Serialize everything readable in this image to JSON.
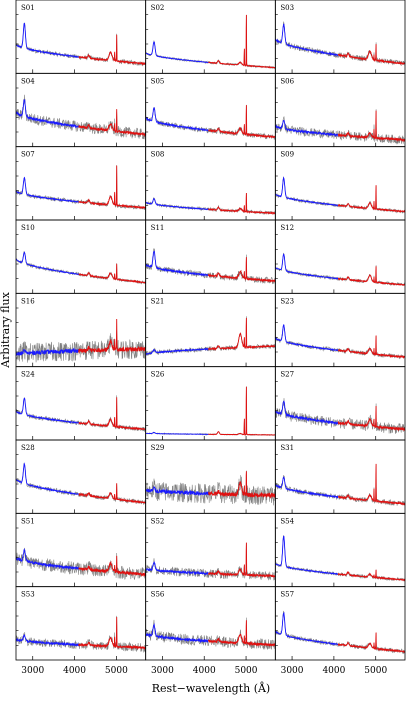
{
  "chart_data": {
    "type": "line",
    "title": "",
    "ylabel": "Arbitrary flux",
    "xlabel": "Rest−wavelength (Å)",
    "xlim": [
      2600,
      5700
    ],
    "xticks": [
      3000,
      4000,
      5000
    ],
    "grid": false,
    "colors": {
      "blue_fit": "#1a1aff",
      "red_fit": "#e01010",
      "observed": "#808080",
      "axes": "#000000"
    },
    "series_note_blue_range": [
      2600,
      4100
    ],
    "series_note_red_range": [
      4100,
      5700
    ],
    "panels": [
      {
        "label": "S01",
        "start": 0.45,
        "end": 0.1,
        "peak": 0.45,
        "oiii": 0.5,
        "hb": 0.15,
        "noise": 0.04
      },
      {
        "label": "S02",
        "start": 0.3,
        "end": 0.03,
        "peak": 0.25,
        "oiii": 0.95,
        "hb": 0.05,
        "noise": 0.02
      },
      {
        "label": "S03",
        "start": 0.55,
        "end": 0.1,
        "peak": 0.35,
        "oiii": 0.3,
        "hb": 0.15,
        "noise": 0.05
      },
      {
        "label": "S04",
        "start": 0.55,
        "end": 0.15,
        "peak": 0.3,
        "oiii": 0.4,
        "hb": 0.12,
        "noise": 0.1
      },
      {
        "label": "S05",
        "start": 0.45,
        "end": 0.1,
        "peak": 0.25,
        "oiii": 0.55,
        "hb": 0.1,
        "noise": 0.05
      },
      {
        "label": "S06",
        "start": 0.3,
        "end": 0.05,
        "peak": 0.15,
        "oiii": 0.5,
        "hb": 0.08,
        "noise": 0.08
      },
      {
        "label": "S07",
        "start": 0.45,
        "end": 0.15,
        "peak": 0.3,
        "oiii": 0.75,
        "hb": 0.15,
        "noise": 0.04
      },
      {
        "label": "S08",
        "start": 0.25,
        "end": 0.05,
        "peak": 0.1,
        "oiii": 0.35,
        "hb": 0.05,
        "noise": 0.03
      },
      {
        "label": "S09",
        "start": 0.4,
        "end": 0.08,
        "peak": 0.35,
        "oiii": 0.45,
        "hb": 0.1,
        "noise": 0.03
      },
      {
        "label": "S10",
        "start": 0.55,
        "end": 0.12,
        "peak": 0.2,
        "oiii": 0.3,
        "hb": 0.1,
        "noise": 0.03
      },
      {
        "label": "S11",
        "start": 0.45,
        "end": 0.15,
        "peak": 0.3,
        "oiii": 0.4,
        "hb": 0.12,
        "noise": 0.06
      },
      {
        "label": "S12",
        "start": 0.4,
        "end": 0.08,
        "peak": 0.3,
        "oiii": 0.3,
        "hb": 0.12,
        "noise": 0.03
      },
      {
        "label": "S16",
        "start": 0.15,
        "end": 0.25,
        "peak": 0.05,
        "oiii": 0.55,
        "hb": 0.15,
        "noise": 0.18
      },
      {
        "label": "S21",
        "start": 0.15,
        "end": 0.3,
        "peak": 0.05,
        "oiii": 0.55,
        "hb": 0.25,
        "noise": 0.04
      },
      {
        "label": "S23",
        "start": 0.45,
        "end": 0.1,
        "peak": 0.3,
        "oiii": 0.35,
        "hb": 0.1,
        "noise": 0.04
      },
      {
        "label": "S24",
        "start": 0.45,
        "end": 0.12,
        "peak": 0.3,
        "oiii": 0.55,
        "hb": 0.12,
        "noise": 0.04
      },
      {
        "label": "S26",
        "start": 0.05,
        "end": 0.02,
        "peak": 0.02,
        "oiii": 0.9,
        "hb": 0.02,
        "noise": 0.01
      },
      {
        "label": "S27",
        "start": 0.45,
        "end": 0.12,
        "peak": 0.25,
        "oiii": 0.4,
        "hb": 0.12,
        "noise": 0.1
      },
      {
        "label": "S28",
        "start": 0.55,
        "end": 0.12,
        "peak": 0.35,
        "oiii": 0.3,
        "hb": 0.1,
        "noise": 0.04
      },
      {
        "label": "S29",
        "start": 0.35,
        "end": 0.25,
        "peak": 0.05,
        "oiii": 0.45,
        "hb": 0.2,
        "noise": 0.18
      },
      {
        "label": "S31",
        "start": 0.45,
        "end": 0.1,
        "peak": 0.2,
        "oiii": 0.7,
        "hb": 0.1,
        "noise": 0.05
      },
      {
        "label": "S51",
        "start": 0.45,
        "end": 0.15,
        "peak": 0.2,
        "oiii": 0.3,
        "hb": 0.15,
        "noise": 0.12
      },
      {
        "label": "S52",
        "start": 0.25,
        "end": 0.12,
        "peak": 0.15,
        "oiii": 0.6,
        "hb": 0.1,
        "noise": 0.08
      },
      {
        "label": "S54",
        "start": 0.35,
        "end": 0.05,
        "peak": 0.55,
        "oiii": 0.15,
        "hb": 0.05,
        "noise": 0.03
      },
      {
        "label": "S53",
        "start": 0.3,
        "end": 0.15,
        "peak": 0.1,
        "oiii": 0.55,
        "hb": 0.15,
        "noise": 0.08
      },
      {
        "label": "S56",
        "start": 0.4,
        "end": 0.2,
        "peak": 0.2,
        "oiii": 0.45,
        "hb": 0.15,
        "noise": 0.1
      },
      {
        "label": "S57",
        "start": 0.45,
        "end": 0.08,
        "peak": 0.4,
        "oiii": 0.3,
        "hb": 0.08,
        "noise": 0.04
      }
    ]
  }
}
